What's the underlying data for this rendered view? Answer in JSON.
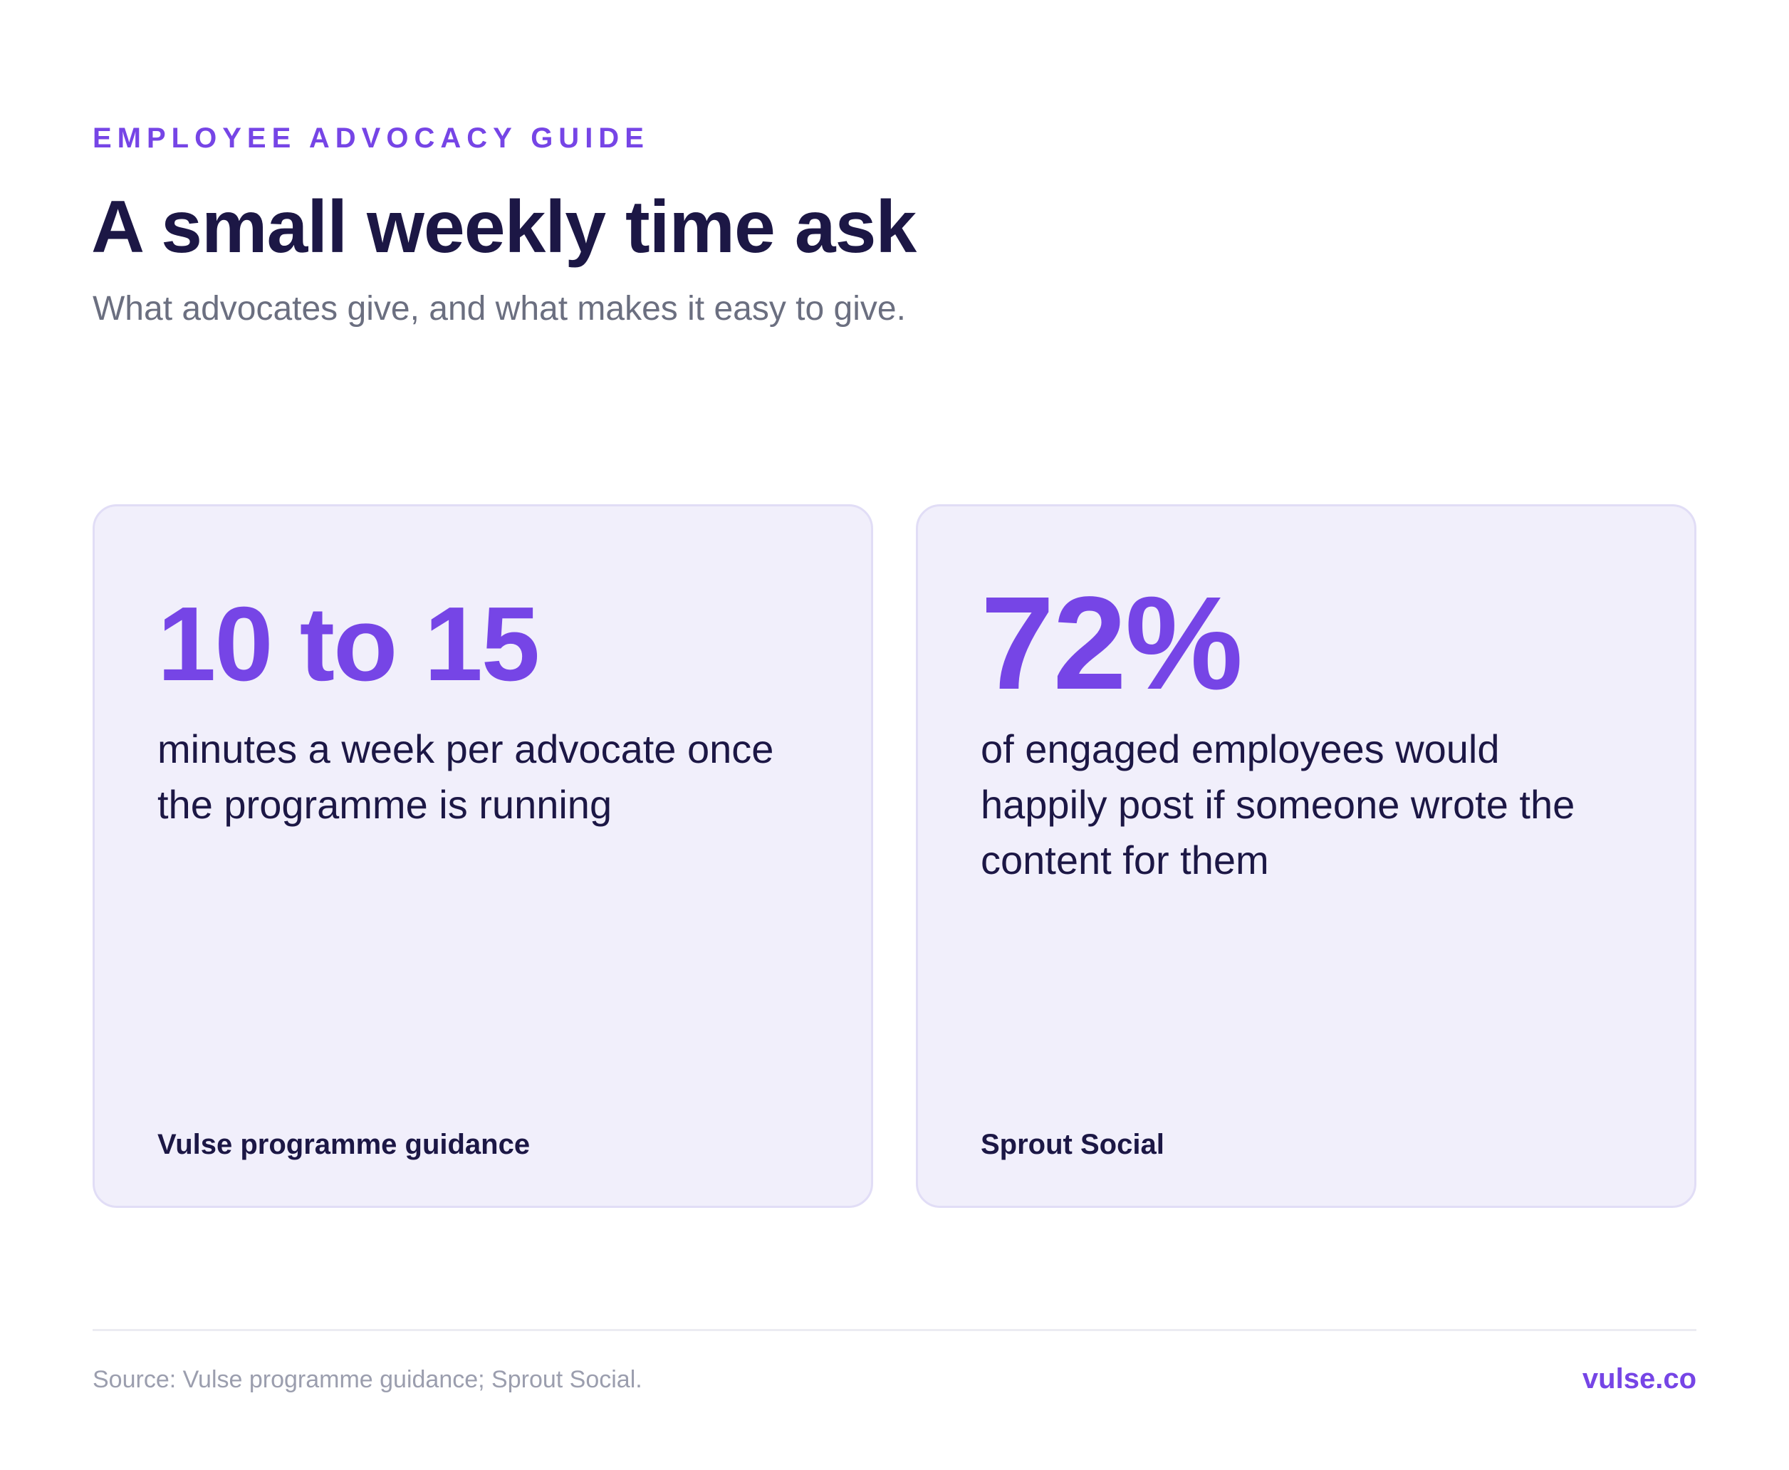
{
  "header": {
    "eyebrow": "EMPLOYEE ADVOCACY GUIDE",
    "title": "A small weekly time ask",
    "subtitle": "What advocates give, and what makes it easy to give."
  },
  "cards": [
    {
      "stat": "10 to 15",
      "description": "minutes a week per advocate once the programme is running",
      "source": "Vulse programme guidance"
    },
    {
      "stat": "72%",
      "description": "of engaged employees would happily post if someone wrote the content for them",
      "source": "Sprout Social"
    }
  ],
  "footer": {
    "source_note": "Source: Vulse programme guidance; Sprout Social.",
    "brand": "vulse.co"
  },
  "colors": {
    "accent": "#7645e6",
    "heading": "#1c1745",
    "muted": "#6b6f80",
    "card_background": "#f1effb",
    "card_border": "#e1ddf6"
  }
}
